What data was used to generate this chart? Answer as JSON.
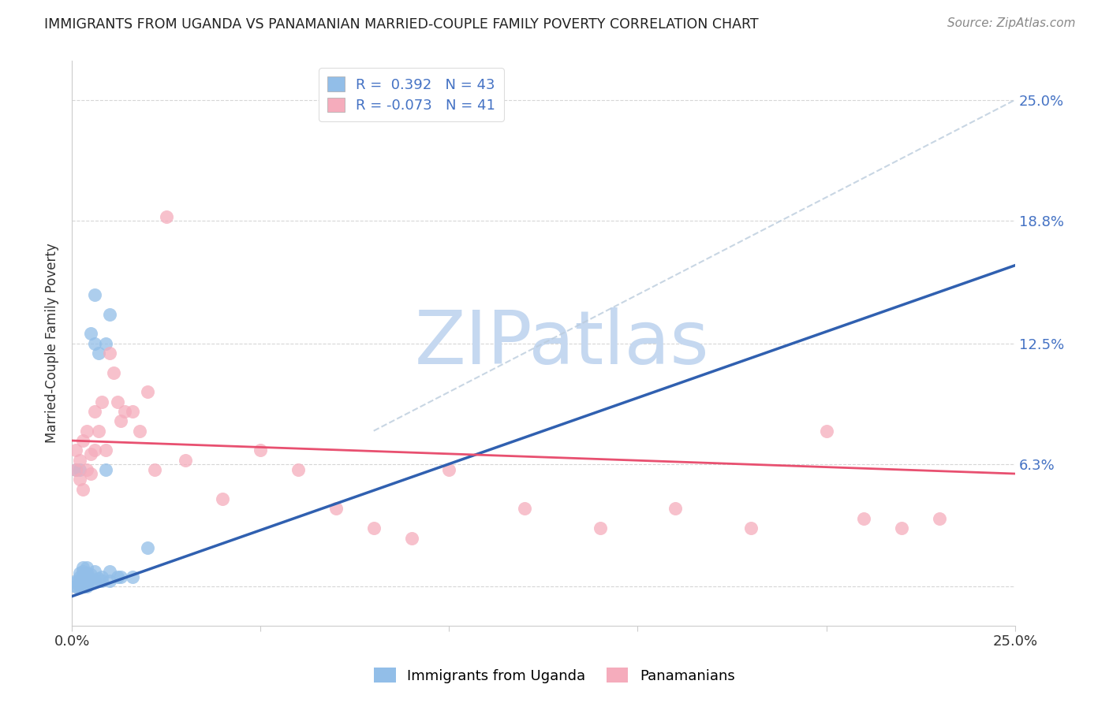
{
  "title": "IMMIGRANTS FROM UGANDA VS PANAMANIAN MARRIED-COUPLE FAMILY POVERTY CORRELATION CHART",
  "source": "Source: ZipAtlas.com",
  "ylabel": "Married-Couple Family Poverty",
  "xmin": 0.0,
  "xmax": 0.25,
  "ymin": -0.02,
  "ymax": 0.27,
  "yticks": [
    0.0,
    0.063,
    0.125,
    0.188,
    0.25
  ],
  "ytick_labels": [
    "",
    "6.3%",
    "12.5%",
    "18.8%",
    "25.0%"
  ],
  "legend_r1": "R =  0.392   N = 43",
  "legend_r2": "R = -0.073   N = 41",
  "blue_color": "#92BEE8",
  "pink_color": "#F5ACBC",
  "blue_line_color": "#3060B0",
  "pink_line_color": "#E85070",
  "watermark": "ZIPatlas",
  "watermark_color": "#C5D8F0",
  "watermark_atlas_color": "#A0B8D8",
  "blue_scatter_x": [
    0.001,
    0.001,
    0.001,
    0.001,
    0.001,
    0.002,
    0.002,
    0.002,
    0.002,
    0.002,
    0.002,
    0.003,
    0.003,
    0.003,
    0.003,
    0.003,
    0.003,
    0.004,
    0.004,
    0.004,
    0.004,
    0.004,
    0.005,
    0.005,
    0.005,
    0.005,
    0.006,
    0.006,
    0.006,
    0.006,
    0.007,
    0.007,
    0.008,
    0.008,
    0.009,
    0.009,
    0.01,
    0.01,
    0.01,
    0.012,
    0.013,
    0.016,
    0.02
  ],
  "blue_scatter_y": [
    0.0,
    0.0,
    0.002,
    0.003,
    0.06,
    0.0,
    0.001,
    0.003,
    0.005,
    0.007,
    0.06,
    0.0,
    0.002,
    0.004,
    0.006,
    0.008,
    0.01,
    0.0,
    0.002,
    0.004,
    0.007,
    0.01,
    0.002,
    0.004,
    0.006,
    0.13,
    0.003,
    0.008,
    0.125,
    0.15,
    0.004,
    0.12,
    0.003,
    0.005,
    0.06,
    0.125,
    0.003,
    0.008,
    0.14,
    0.005,
    0.005,
    0.005,
    0.02
  ],
  "pink_scatter_x": [
    0.001,
    0.001,
    0.002,
    0.002,
    0.003,
    0.003,
    0.004,
    0.004,
    0.005,
    0.005,
    0.006,
    0.006,
    0.007,
    0.008,
    0.009,
    0.01,
    0.011,
    0.012,
    0.013,
    0.014,
    0.016,
    0.018,
    0.02,
    0.022,
    0.025,
    0.03,
    0.04,
    0.05,
    0.06,
    0.07,
    0.08,
    0.09,
    0.1,
    0.12,
    0.14,
    0.16,
    0.18,
    0.2,
    0.21,
    0.22,
    0.23
  ],
  "pink_scatter_y": [
    0.06,
    0.07,
    0.055,
    0.065,
    0.05,
    0.075,
    0.06,
    0.08,
    0.058,
    0.068,
    0.07,
    0.09,
    0.08,
    0.095,
    0.07,
    0.12,
    0.11,
    0.095,
    0.085,
    0.09,
    0.09,
    0.08,
    0.1,
    0.06,
    0.19,
    0.065,
    0.045,
    0.07,
    0.06,
    0.04,
    0.03,
    0.025,
    0.06,
    0.04,
    0.03,
    0.04,
    0.03,
    0.08,
    0.035,
    0.03,
    0.035
  ],
  "blue_line_x": [
    0.0,
    0.25
  ],
  "blue_line_y": [
    -0.005,
    0.165
  ],
  "pink_line_x": [
    0.0,
    0.25
  ],
  "pink_line_y": [
    0.075,
    0.058
  ],
  "diag_line_x": [
    0.08,
    0.25
  ],
  "diag_line_y": [
    0.08,
    0.25
  ]
}
